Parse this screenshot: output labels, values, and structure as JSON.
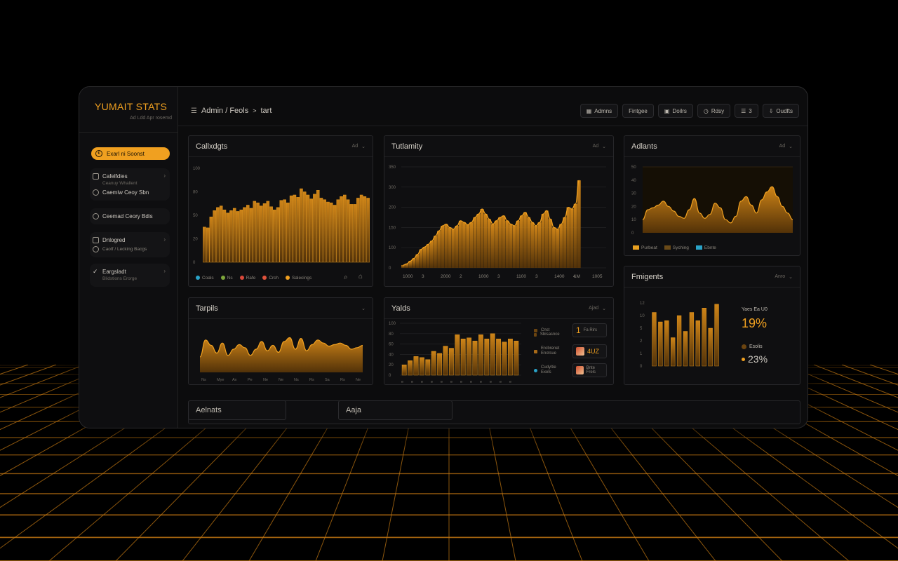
{
  "brand": {
    "name": "YUMAIT STATS",
    "subtitle": "Ad Ldd Apr rosemd"
  },
  "header": {
    "breadcrumb": [
      "Admin / Feols",
      "tart"
    ],
    "toolbar": [
      {
        "label": "Admns",
        "icon": "grid-icon"
      },
      {
        "label": "Fintgee",
        "icon": ""
      },
      {
        "label": "Doilrs",
        "icon": "box-icon"
      },
      {
        "label": "Rdsy",
        "icon": "clock-icon"
      },
      {
        "label": "3",
        "icon": "list-icon"
      },
      {
        "label": "Oudfts",
        "icon": "download-icon"
      }
    ]
  },
  "sidebar": {
    "primary": "Exarl ni Soonst",
    "groups": [
      {
        "items": [
          {
            "label": "Cafelfdies",
            "sub": "Ceanuy Whallent",
            "icon": "file-icon"
          },
          {
            "label": "Caemiw Ceoy Sbn",
            "sub": "",
            "icon": "user-icon"
          }
        ]
      },
      {
        "items": [
          {
            "label": "Ceemad Ceory Bdis",
            "sub": "",
            "icon": "shield-icon"
          }
        ]
      },
      {
        "items": [
          {
            "label": "Dnlogred",
            "sub": "",
            "icon": "folder-icon"
          },
          {
            "label": "Caotf / Lecking Bacgs",
            "sub": "",
            "icon": "user-icon"
          }
        ]
      },
      {
        "items": [
          {
            "label": "Eargsladt",
            "sub": "Blidstions Erorge",
            "icon": "check-icon"
          }
        ]
      }
    ]
  },
  "panels": {
    "p1": {
      "title": "Callxdgts",
      "ctl": "Ad"
    },
    "p2": {
      "title": "Tutlamity",
      "ctl": "Ad"
    },
    "p3": {
      "title": "Adlants",
      "ctl": "Ad"
    },
    "p4": {
      "title": "Tarpils",
      "ctl": ""
    },
    "p5": {
      "title": "Yalds",
      "ctl": "Ajad"
    },
    "p6": {
      "title": "Fmigents",
      "ctl": "Anro"
    }
  },
  "chart_data": [
    {
      "type": "bar",
      "panel": "p1",
      "title": "Callxdgts",
      "ylim": [
        0,
        120
      ],
      "yticks": [
        "0",
        "20",
        "50",
        "80",
        "100"
      ],
      "values": [
        45,
        44,
        58,
        66,
        70,
        72,
        67,
        63,
        66,
        69,
        65,
        67,
        70,
        73,
        69,
        78,
        76,
        72,
        75,
        78,
        71,
        67,
        70,
        79,
        80,
        76,
        85,
        86,
        83,
        94,
        90,
        86,
        81,
        87,
        92,
        82,
        80,
        77,
        76,
        73,
        80,
        84,
        86,
        80,
        74,
        74,
        82,
        86,
        84,
        82
      ],
      "legend": [
        {
          "label": "Coals",
          "color": "#2aa3c8"
        },
        {
          "label": "Ns",
          "color": "#7da53a"
        },
        {
          "label": "Rafe",
          "color": "#d9483a"
        },
        {
          "label": "Crch",
          "color": "#e0533c"
        },
        {
          "label": "Salecings",
          "color": "#f0a020"
        }
      ]
    },
    {
      "type": "area",
      "panel": "p2",
      "title": "Tutlamity",
      "ylim": [
        0,
        300
      ],
      "yticks": [
        "0",
        "100",
        "150",
        "200",
        "300",
        "350"
      ],
      "xticks": [
        "1000",
        "3",
        "2000",
        "2",
        "1000",
        "3",
        "1100",
        "3",
        "1400",
        "4",
        "1005"
      ],
      "values": [
        8,
        12,
        20,
        28,
        40,
        55,
        62,
        70,
        80,
        95,
        110,
        125,
        130,
        120,
        115,
        125,
        140,
        135,
        128,
        135,
        150,
        160,
        175,
        160,
        145,
        130,
        140,
        150,
        155,
        140,
        130,
        125,
        140,
        155,
        165,
        150,
        135,
        125,
        135,
        160,
        170,
        145,
        120,
        115,
        130,
        150,
        180,
        175,
        190,
        260
      ],
      "peak_label": "1M"
    },
    {
      "type": "area",
      "panel": "p3",
      "title": "Adlants",
      "ylim": [
        0,
        100
      ],
      "yticks": [
        "0",
        "10",
        "20",
        "30",
        "40",
        "50"
      ],
      "values": [
        20,
        35,
        38,
        42,
        48,
        40,
        33,
        25,
        22,
        35,
        52,
        30,
        22,
        28,
        45,
        38,
        20,
        15,
        25,
        48,
        55,
        42,
        30,
        50,
        62,
        70,
        55,
        40,
        30,
        20
      ],
      "legend": [
        {
          "label": "Purbeat",
          "color": "#e8a020"
        },
        {
          "label": "Syching",
          "color": "#6a4a18"
        },
        {
          "label": "Ebnte",
          "color": "#2aa3c8"
        }
      ]
    },
    {
      "type": "area",
      "panel": "p4",
      "title": "Tarpils",
      "xticks": [
        "Ns",
        "Mye",
        "Ax",
        "Pe",
        "Ne",
        "Ne",
        "Ns",
        "Rs",
        "Sa",
        "Rs",
        "Ne"
      ],
      "values": [
        20,
        42,
        35,
        25,
        38,
        22,
        30,
        36,
        32,
        22,
        30,
        40,
        28,
        35,
        26,
        40,
        45,
        30,
        44,
        28,
        36,
        42,
        38,
        34,
        36,
        38,
        35,
        30,
        32,
        35
      ]
    },
    {
      "type": "bar",
      "panel": "p5",
      "title": "Yalds",
      "ylim": [
        0,
        100
      ],
      "yticks": [
        "0",
        "20",
        "40",
        "60",
        "80",
        "100"
      ],
      "values": [
        20,
        28,
        36,
        34,
        30,
        46,
        42,
        56,
        52,
        78,
        70,
        72,
        66,
        78,
        70,
        80,
        70,
        64,
        70,
        66
      ],
      "stats": [
        {
          "label": "Cnst",
          "sub": "",
          "value": "1",
          "detail": "Fa Rirs"
        },
        {
          "label": "Sbisasnce",
          "sub": "",
          "value": "",
          "detail": ""
        },
        {
          "label": "Erobrenet",
          "sub": "Enotsue",
          "value": "4UZ",
          "detail": ""
        },
        {
          "label": "Cudyltie",
          "sub": "Exels",
          "value": "",
          "detail": "Bnte Frels"
        }
      ]
    },
    {
      "type": "bar",
      "panel": "p6",
      "title": "Fmigents",
      "ylim": [
        0,
        100
      ],
      "yticks": [
        "0",
        "1",
        "2",
        "5",
        "10",
        "12"
      ],
      "values": [
        85,
        70,
        72,
        45,
        80,
        55,
        85,
        72,
        92,
        60,
        98
      ],
      "stats": [
        {
          "label": "Yaes Ea U0",
          "value": "19%"
        },
        {
          "label": "Esolis",
          "value": "23%"
        }
      ]
    }
  ],
  "bottom": {
    "field1": "Aelnats",
    "field2": "Aaja"
  },
  "colors": {
    "accent": "#f0a020",
    "accent_dark": "#6b4410",
    "bg": "#0c0c0d"
  }
}
